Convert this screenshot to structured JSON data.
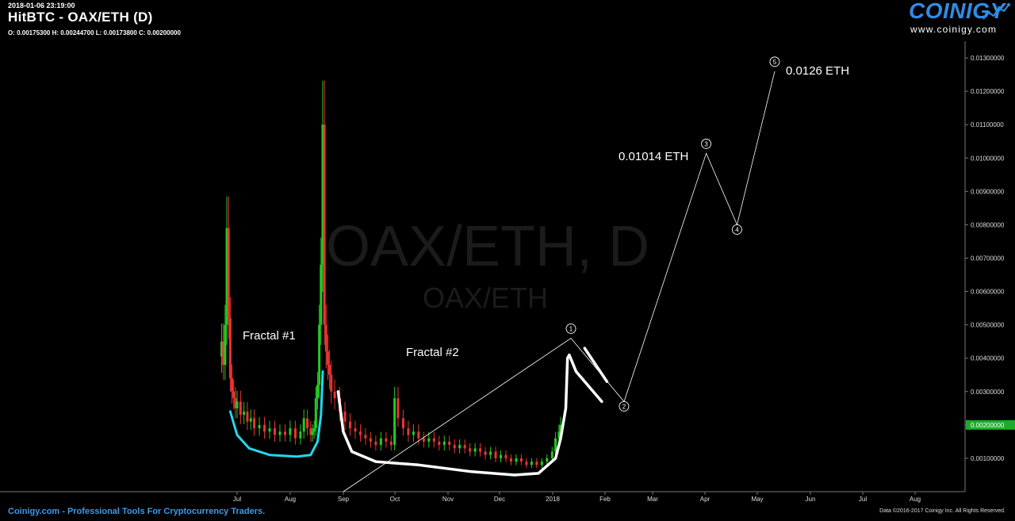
{
  "header": {
    "timestamp": "2018-01-06 23:19:00",
    "title": "HitBTC - OAX/ETH (D)",
    "ohlc": "O: 0.00175300 H: 0.00244700 L: 0.00173800 C: 0.00200000"
  },
  "logo": {
    "brand": "COINIGY",
    "url": "www.coinigy.com"
  },
  "footer": {
    "left": "Coinigy.com - Professional Tools For Cryptocurrency Traders.",
    "right": "Data ©2016-2017 Coinigy Inc. All Rights Reserved."
  },
  "watermark": {
    "main": "OAX/ETH, D",
    "sub": "OAX/ETH"
  },
  "colors": {
    "background": "#000000",
    "up_candle": "#22cc22",
    "down_candle": "#ee3333",
    "price_tag": "#1faa2b",
    "fractal1_curve": "#22d8ee",
    "fractal2_curve": "#ffffff",
    "logo": "#2f8de4",
    "footer_link": "#3c9be8"
  },
  "chart_data": {
    "type": "candlestick",
    "pair": "OAX/ETH",
    "exchange": "HitBTC",
    "interval": "D",
    "x_tick_labels": [
      "Jul",
      "Aug",
      "Sep",
      "Oct",
      "Nov",
      "Dec",
      "2018",
      "Feb",
      "Mar",
      "Apr",
      "May",
      "Jun",
      "Jul",
      "Aug"
    ],
    "y_tick_labels": [
      "0.00100000",
      "0.00200000",
      "0.00300000",
      "0.00400000",
      "0.00500000",
      "0.00600000",
      "0.00700000",
      "0.00800000",
      "0.00900000",
      "0.01000000",
      "0.01100000",
      "0.01200000",
      "0.01300000"
    ],
    "ylim": [
      0,
      0.0135
    ],
    "last_price_label": "0.00200000",
    "last_price": 0.002,
    "annotations": {
      "fractal1": "Fractal #1",
      "fractal2": "Fractal #2",
      "target_wave3": "0.01014 ETH",
      "target_wave5": "0.0126 ETH"
    },
    "wave_labels": [
      "1",
      "2",
      "3",
      "4",
      "5"
    ],
    "wave_points": [
      {
        "label": "",
        "x": "2017-09-01",
        "y": 0.0
      },
      {
        "label": "1",
        "x": "2018-01-12",
        "y": 0.0046
      },
      {
        "label": "2",
        "x": "2018-02-12",
        "y": 0.0027
      },
      {
        "label": "3",
        "x": "2018-04-01",
        "y": 0.01014
      },
      {
        "label": "4",
        "x": "2018-04-19",
        "y": 0.008
      },
      {
        "label": "5",
        "x": "2018-05-11",
        "y": 0.0126
      }
    ],
    "series": [
      {
        "dates": [
          "2017-06-22",
          "2017-06-23",
          "2017-06-24",
          "2017-06-25",
          "2017-06-26",
          "2017-06-27",
          "2017-06-28",
          "2017-06-29",
          "2017-06-30",
          "2017-07-01",
          "2017-07-03",
          "2017-07-05",
          "2017-07-07",
          "2017-07-09",
          "2017-07-11",
          "2017-07-14",
          "2017-07-17",
          "2017-07-20",
          "2017-07-23",
          "2017-07-26",
          "2017-07-29",
          "2017-08-01",
          "2017-08-04",
          "2017-08-07",
          "2017-08-09",
          "2017-08-11",
          "2017-08-13",
          "2017-08-14",
          "2017-08-15",
          "2017-08-16",
          "2017-08-17",
          "2017-08-18",
          "2017-08-19",
          "2017-08-20",
          "2017-08-21",
          "2017-08-22",
          "2017-08-23",
          "2017-08-24",
          "2017-08-25",
          "2017-08-27",
          "2017-08-30",
          "2017-09-02",
          "2017-09-05",
          "2017-09-08",
          "2017-09-11",
          "2017-09-14",
          "2017-09-17",
          "2017-09-20",
          "2017-09-23",
          "2017-09-26",
          "2017-09-29",
          "2017-10-01",
          "2017-10-03",
          "2017-10-06",
          "2017-10-09",
          "2017-10-12",
          "2017-10-15",
          "2017-10-18",
          "2017-10-21",
          "2017-10-24",
          "2017-10-27",
          "2017-10-30",
          "2017-11-02",
          "2017-11-05",
          "2017-11-08",
          "2017-11-11",
          "2017-11-14",
          "2017-11-17",
          "2017-11-20",
          "2017-11-23",
          "2017-11-26",
          "2017-11-29",
          "2017-12-02",
          "2017-12-05",
          "2017-12-08",
          "2017-12-11",
          "2017-12-14",
          "2017-12-17",
          "2017-12-20",
          "2017-12-23",
          "2017-12-26",
          "2017-12-29",
          "2018-01-01",
          "2018-01-03",
          "2018-01-05",
          "2018-01-06"
        ],
        "close": [
          0.0045,
          0.0038,
          0.005,
          0.0079,
          0.0052,
          0.0034,
          0.003,
          0.0028,
          0.0025,
          0.0027,
          0.0023,
          0.0024,
          0.0021,
          0.0022,
          0.0019,
          0.002,
          0.0018,
          0.0019,
          0.0017,
          0.0018,
          0.0017,
          0.0019,
          0.0016,
          0.0018,
          0.0022,
          0.0019,
          0.0017,
          0.0018,
          0.0019,
          0.0028,
          0.0032,
          0.005,
          0.0068,
          0.011,
          0.005,
          0.0042,
          0.0038,
          0.0035,
          0.003,
          0.0028,
          0.0024,
          0.0021,
          0.0019,
          0.0018,
          0.0017,
          0.0016,
          0.0015,
          0.0014,
          0.0016,
          0.0015,
          0.0014,
          0.0028,
          0.0022,
          0.0019,
          0.0017,
          0.0018,
          0.0016,
          0.0015,
          0.0016,
          0.0015,
          0.0014,
          0.0015,
          0.0014,
          0.0013,
          0.0014,
          0.0013,
          0.0012,
          0.0013,
          0.0012,
          0.0011,
          0.0012,
          0.001,
          0.0011,
          0.001,
          0.0009,
          0.001,
          0.0009,
          0.0008,
          0.0009,
          0.0008,
          0.0009,
          0.001,
          0.0012,
          0.0016,
          0.0018,
          0.002
        ]
      }
    ]
  }
}
